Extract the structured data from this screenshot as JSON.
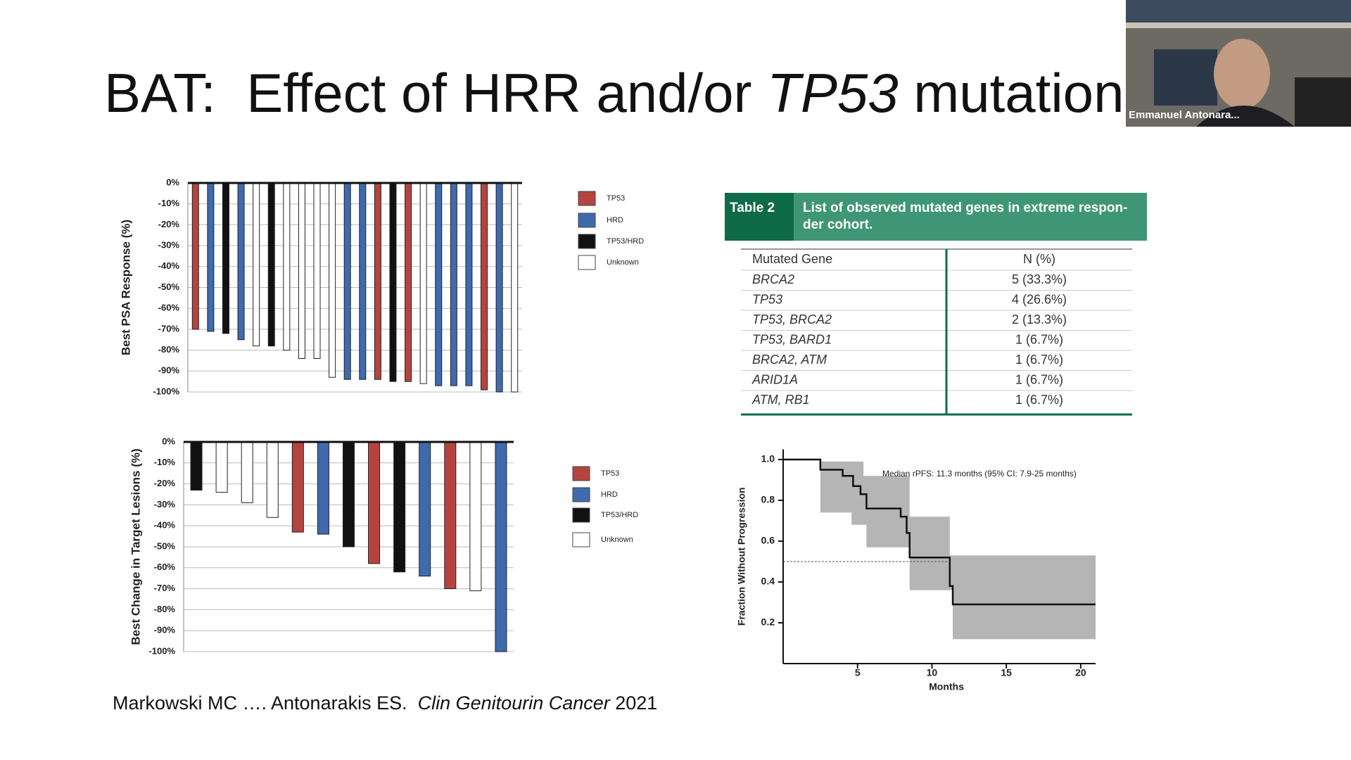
{
  "title": [
    "BAT:  Effect of HRR and/or ",
    "TP53",
    " mutations"
  ],
  "video": {
    "name": "Emmanuel Antonara..."
  },
  "citation": [
    "Markowski MC …. Antonarakis ES.  ",
    "Clin Genitourin Cancer",
    " 2021"
  ],
  "table": {
    "label": "Table 2",
    "caption_lines": [
      "List of observed mutated genes in extreme respon-",
      "der cohort."
    ],
    "columns": [
      "Mutated Gene",
      "N (%)"
    ],
    "rows": [
      [
        "BRCA2",
        "5 (33.3%)"
      ],
      [
        "TP53",
        "4 (26.6%)"
      ],
      [
        "TP53, BRCA2",
        "2 (13.3%)"
      ],
      [
        "TP53, BARD1",
        "1 (6.7%)"
      ],
      [
        "BRCA2, ATM",
        "1 (6.7%)"
      ],
      [
        "ARID1A",
        "1 (6.7%)"
      ],
      [
        "ATM, RB1",
        "1 (6.7%)"
      ]
    ]
  },
  "chart_data": [
    {
      "type": "bar",
      "ylabel": "Best PSA Response (%)",
      "categories": [
        null,
        null,
        null,
        null,
        null,
        null,
        null,
        null,
        null,
        null,
        null,
        null,
        null,
        null,
        null,
        null,
        null,
        null,
        null,
        null,
        null,
        null
      ],
      "series": [
        {
          "name": "TP53",
          "color": "#b5443f",
          "values": [
            -70,
            null,
            null,
            null,
            null,
            null,
            null,
            null,
            null,
            null,
            null,
            null,
            -94,
            null,
            -95,
            null,
            null,
            null,
            null,
            -99,
            null,
            null
          ]
        },
        {
          "name": "HRD",
          "color": "#3f6aad",
          "values": [
            null,
            -71,
            null,
            -75,
            null,
            null,
            null,
            null,
            null,
            null,
            -94,
            -94,
            null,
            null,
            null,
            null,
            -97,
            -97,
            -97,
            null,
            -100,
            null
          ]
        },
        {
          "name": "TP53/HRD",
          "color": "#111111",
          "values": [
            null,
            null,
            -72,
            null,
            null,
            -78,
            null,
            null,
            null,
            null,
            null,
            null,
            null,
            -95,
            null,
            null,
            null,
            null,
            null,
            null,
            null,
            null
          ]
        },
        {
          "name": "Unknown",
          "color": "#ffffff",
          "values": [
            null,
            null,
            null,
            null,
            -78,
            null,
            -80,
            -84,
            -84,
            -93,
            null,
            null,
            null,
            null,
            null,
            -96,
            null,
            null,
            null,
            null,
            null,
            -100
          ]
        }
      ],
      "ylim": [
        -100,
        0
      ],
      "yticks": [
        {
          "value": 0,
          "label": "0%"
        },
        {
          "value": -10,
          "label": "-10%"
        },
        {
          "value": -20,
          "label": "-20%"
        },
        {
          "value": -30,
          "label": "-30%"
        },
        {
          "value": -40,
          "label": "-40%"
        },
        {
          "value": -50,
          "label": "-50%"
        },
        {
          "value": -60,
          "label": "-60%"
        },
        {
          "value": -70,
          "label": "-70%"
        },
        {
          "value": -80,
          "label": "-80%"
        },
        {
          "value": -90,
          "label": "-90%"
        },
        {
          "value": -100,
          "label": "-100%"
        }
      ],
      "grid": true
    },
    {
      "type": "bar",
      "ylabel": "Best Change in Target Lesions (%)",
      "categories": [
        null,
        null,
        null,
        null,
        null,
        null,
        null,
        null,
        null,
        null,
        null,
        null,
        null
      ],
      "series": [
        {
          "name": "TP53",
          "color": "#b5443f",
          "values": [
            null,
            null,
            null,
            null,
            -43,
            null,
            null,
            -58,
            null,
            null,
            -70,
            null,
            null
          ]
        },
        {
          "name": "HRD",
          "color": "#3f6aad",
          "values": [
            null,
            null,
            null,
            null,
            null,
            -44,
            null,
            null,
            null,
            -64,
            null,
            null,
            -100
          ]
        },
        {
          "name": "TP53/HRD",
          "color": "#111111",
          "values": [
            -23,
            null,
            null,
            null,
            null,
            null,
            -50,
            null,
            -62,
            null,
            null,
            null,
            null
          ]
        },
        {
          "name": "Unknown",
          "color": "#ffffff",
          "values": [
            null,
            -24,
            -29,
            -36,
            null,
            null,
            null,
            null,
            null,
            null,
            null,
            -71,
            null
          ]
        }
      ],
      "ylim": [
        -100,
        0
      ],
      "yticks": [
        {
          "value": 0,
          "label": "0%"
        },
        {
          "value": -10,
          "label": "-10%"
        },
        {
          "value": -20,
          "label": "-20%"
        },
        {
          "value": -30,
          "label": "-30%"
        },
        {
          "value": -40,
          "label": "-40%"
        },
        {
          "value": -50,
          "label": "-50%"
        },
        {
          "value": -60,
          "label": "-60%"
        },
        {
          "value": -70,
          "label": "-70%"
        },
        {
          "value": -80,
          "label": "-80%"
        },
        {
          "value": -90,
          "label": "-90%"
        },
        {
          "value": -100,
          "label": "-100%"
        }
      ],
      "grid": true
    },
    {
      "type": "line",
      "xlabel": "Months",
      "ylabel": "Fraction Without Progression",
      "annotation": "Median rPFS: 11.3 months (95% CI: 7.9-25 months)",
      "xlim": [
        0,
        21
      ],
      "ylim": [
        0,
        1.05
      ],
      "xticks": [
        5,
        10,
        15,
        20
      ],
      "yticks": [
        0.2,
        0.4,
        0.6,
        0.8,
        {
          "value": 1,
          "label": "1.0"
        }
      ],
      "series": [
        {
          "color": "#111111",
          "x": [
            0,
            2.5,
            2.5,
            4.0,
            4.0,
            4.7,
            4.7,
            5.2,
            5.2,
            5.6,
            5.6,
            7.9,
            7.9,
            8.3,
            8.3,
            8.5,
            8.5,
            11.2,
            11.2,
            11.4,
            11.4,
            21
          ],
          "values": [
            1,
            1,
            0.95,
            0.95,
            0.92,
            0.92,
            0.87,
            0.87,
            0.83,
            0.83,
            0.76,
            0.76,
            0.72,
            0.72,
            0.64,
            0.64,
            0.52,
            0.52,
            0.38,
            0.38,
            0.29,
            0.29
          ]
        }
      ],
      "band": {
        "color": "#b5b5b5",
        "x": [
          2.5,
          4.6,
          4.6,
          5.4,
          5.4,
          5.6,
          5.6,
          8.5,
          8.5,
          11.2,
          11.2,
          11.4,
          11.4,
          21
        ],
        "upper": [
          0.99,
          0.99,
          0.99,
          0.99,
          0.92,
          0.92,
          0.92,
          0.92,
          0.72,
          0.72,
          0.53,
          0.53,
          0.53,
          0.53
        ],
        "lower": [
          0.74,
          0.74,
          0.68,
          0.68,
          0.68,
          0.68,
          0.57,
          0.57,
          0.36,
          0.36,
          0.36,
          0.36,
          0.12,
          0.12
        ]
      },
      "reference_line": {
        "y": 0.5
      }
    }
  ]
}
